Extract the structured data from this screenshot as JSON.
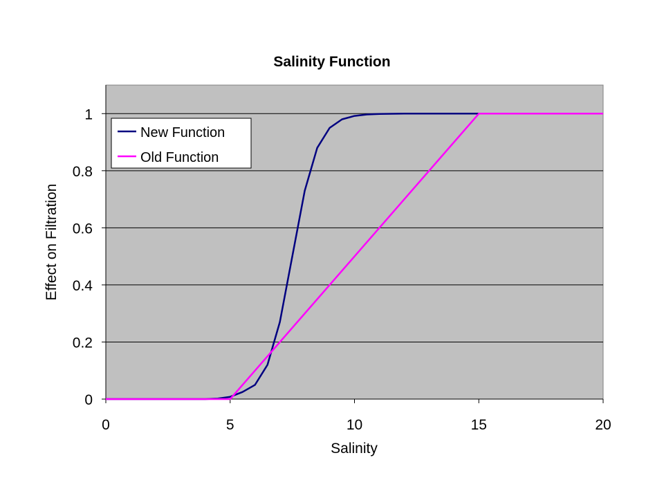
{
  "chart_data": {
    "type": "line",
    "title": "Salinity Function",
    "xlabel": "Salinity",
    "ylabel": "Effect on Filtration",
    "xlim": [
      0,
      20
    ],
    "ylim": [
      0,
      1.1
    ],
    "xticks": [
      0,
      5,
      10,
      15,
      20
    ],
    "yticks": [
      0,
      0.2,
      0.4,
      0.6,
      0.8,
      1
    ],
    "xtick_labels": [
      "0",
      "5",
      "10",
      "15",
      "20"
    ],
    "ytick_labels": [
      "0",
      "0.2",
      "0.4",
      "0.6",
      "0.8",
      "1"
    ],
    "grid": "horizontal major gridlines",
    "legend_position": "top-left",
    "plot_background": "#c0c0c0",
    "series": [
      {
        "name": "New Function",
        "color": "#000080",
        "x": [
          0,
          1,
          2,
          3,
          4,
          4.5,
          5,
          5.5,
          6,
          6.5,
          7,
          7.5,
          8,
          8.5,
          9,
          9.5,
          10,
          10.5,
          11,
          12,
          13,
          14,
          15
        ],
        "y": [
          0,
          0,
          0,
          0,
          0,
          0.002,
          0.008,
          0.025,
          0.05,
          0.12,
          0.27,
          0.5,
          0.73,
          0.88,
          0.95,
          0.98,
          0.992,
          0.997,
          0.999,
          1,
          1,
          1,
          1
        ]
      },
      {
        "name": "Old Function",
        "color": "#ff00ff",
        "x": [
          0,
          5,
          15,
          20
        ],
        "y": [
          0,
          0,
          1,
          1
        ]
      }
    ]
  }
}
